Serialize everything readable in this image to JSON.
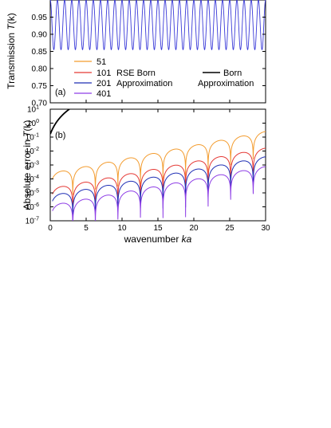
{
  "chart_data": [
    {
      "type": "line",
      "panel_label": "(a)",
      "ylabel": "Transmission T(k)",
      "xlim": [
        0,
        30
      ],
      "ylim": [
        0.7,
        1.0
      ],
      "yticks": [
        "0.70",
        "0.75",
        "0.80",
        "0.85",
        "0.90",
        "0.95"
      ],
      "legend": {
        "entries": [
          {
            "name": "51",
            "color": "#f39c2f"
          },
          {
            "name": "101",
            "color": "#e53935"
          },
          {
            "name": "201",
            "color": "#1f2fb5"
          },
          {
            "name": "401",
            "color": "#8e3ee6"
          },
          {
            "name": "Born",
            "color": "#000000"
          }
        ],
        "group_label_1a": "RSE Born",
        "group_label_1b": "Approximation",
        "group_label_2": "Approximation"
      },
      "series": [
        {
          "name": "401",
          "description_values": {
            "min": 0.855,
            "max": 1.0,
            "oscillation_period_ka": 1.0
          }
        }
      ]
    },
    {
      "type": "line",
      "panel_label": "(b)",
      "xlabel": "wavenumber ka",
      "ylabel": "Absolute error in T(k)",
      "xlim": [
        0,
        30
      ],
      "yscale": "log",
      "ylim_exp": [
        -7,
        1
      ],
      "xticks": [
        "0",
        "5",
        "10",
        "15",
        "20",
        "25",
        "30"
      ],
      "yticks_exp": [
        "1",
        "0",
        "-1",
        "-2",
        "-3",
        "-4",
        "-5",
        "-6",
        "-7"
      ],
      "series": [
        {
          "name": "51",
          "color": "#f39c2f",
          "base_exp": -3.6,
          "slope_exp": 0.1
        },
        {
          "name": "101",
          "color": "#e53935",
          "base_exp": -4.7,
          "slope_exp": 0.097
        },
        {
          "name": "201",
          "color": "#1f2fb5",
          "base_exp": -5.2,
          "slope_exp": 0.093
        },
        {
          "name": "401",
          "color": "#8e3ee6",
          "base_exp": -5.9,
          "slope_exp": 0.093
        },
        {
          "name": "Born",
          "color": "#000000",
          "ka_end": 4.0
        }
      ],
      "dips_at_ka": [
        3.14,
        6.28,
        9.42,
        12.57,
        15.71,
        18.85,
        21.99,
        25.13,
        28.27
      ]
    }
  ],
  "axis_text": {
    "ylabel_a_main": "Transmission ",
    "ylabel_a_T": "T",
    "ylabel_a_k": "(k)",
    "ylabel_b_main": "Absolute error in ",
    "ylabel_b_T": "T",
    "ylabel_b_k": "(k)",
    "xlabel_main": "wavenumber ",
    "xlabel_ka": "ka",
    "tick_base": "10"
  }
}
